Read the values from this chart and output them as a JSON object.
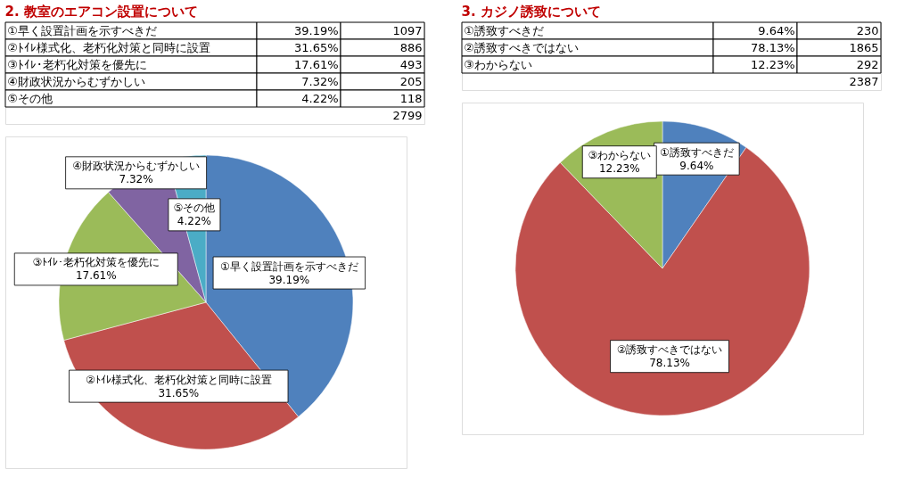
{
  "chart_data": [
    {
      "type": "pie",
      "title": "2. 教室のエアコン設置について",
      "categories": [
        "①早く設置計画を示すべきだ",
        "②ﾄｲﾚ様式化、老朽化対策と同時に設置",
        "③ﾄｲﾚ･老朽化対策を優先に",
        "④財政状況からむずかしい",
        "⑤その他"
      ],
      "values": [
        39.19,
        31.65,
        17.61,
        7.32,
        4.22
      ],
      "colors": [
        "#4f81bd",
        "#c0504d",
        "#9bbb59",
        "#8064a2",
        "#4bacc6"
      ],
      "value_labels": [
        "39.19%",
        "31.65%",
        "17.61%",
        "7.32%",
        "4.22%"
      ],
      "legend": false,
      "annotations": [
        "1097",
        "886",
        "493",
        "205",
        "118",
        "2799"
      ]
    },
    {
      "type": "pie",
      "title": "3. カジノ誘致について",
      "categories": [
        "①誘致すべきだ",
        "②誘致すべきではない",
        "③わからない"
      ],
      "values": [
        9.64,
        78.13,
        12.23
      ],
      "colors": [
        "#4f81bd",
        "#c0504d",
        "#9bbb59"
      ],
      "value_labels": [
        "9.64%",
        "78.13%",
        "12.23%"
      ],
      "legend": false,
      "annotations": [
        "230",
        "1865",
        "292",
        "2387"
      ]
    }
  ]
}
